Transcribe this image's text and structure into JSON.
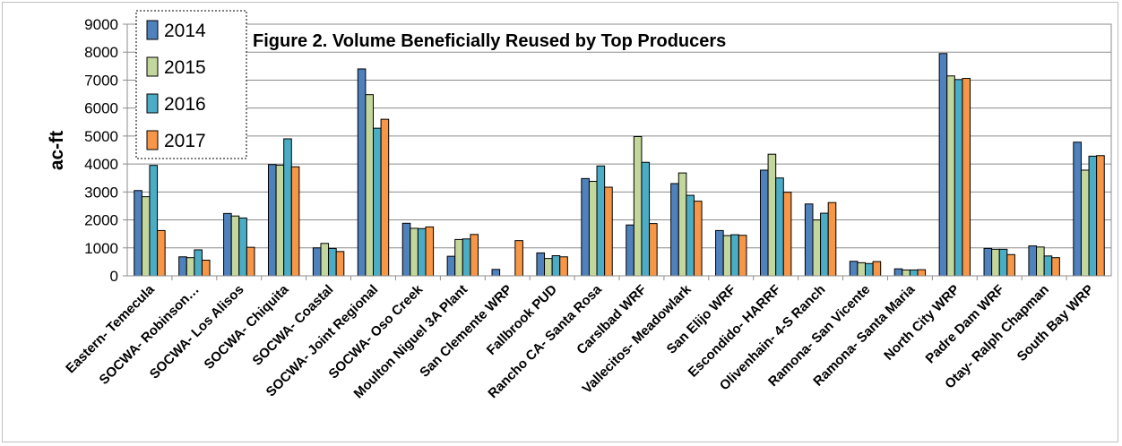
{
  "chart_data": {
    "type": "bar",
    "title": "Figure 2.  Volume Beneficially Reused by Top Producers",
    "xlabel": "",
    "ylabel": "ac-ft",
    "ylim": [
      0,
      9000
    ],
    "yticks": [
      "0",
      "1000",
      "2000",
      "3000",
      "4000",
      "5000",
      "6000",
      "7000",
      "8000",
      "9000"
    ],
    "grid": true,
    "legend": "top-left",
    "categories": [
      "Eastern- Temecula",
      "SOCWA- Robinson…",
      "SOCWA- Los Alisos",
      "SOCWA- Chiquita",
      "SOCWA- Coastal",
      "SOCWA- Joint Regional",
      "SOCWA- Oso Creek",
      "Moulton Niguel 3A Plant",
      "San Clemente WRP",
      "Fallbrook PUD",
      "Rancho CA- Santa Rosa",
      "Carslbad WRF",
      "Vallecitos- Meadowlark",
      "San Elijo WRF",
      "Escondido- HARRF",
      "Olivenhain- 4-S Ranch",
      "Ramona- San Vicente",
      "Ramona- Santa Maria",
      "North City WRP",
      "Padre Dam WRF",
      "Otay- Ralph Chapman",
      "South Bay WRP"
    ],
    "series": [
      {
        "name": "2014",
        "color": "#4F81BD",
        "values": [
          3050,
          680,
          2230,
          3980,
          1000,
          7400,
          1880,
          700,
          230,
          820,
          3480,
          1820,
          3300,
          1620,
          3780,
          2570,
          520,
          250,
          7950,
          980,
          1070,
          4780
        ]
      },
      {
        "name": "2015",
        "color": "#C3D69B",
        "values": [
          2830,
          650,
          2140,
          3960,
          1160,
          6480,
          1700,
          1300,
          0,
          620,
          3380,
          4980,
          3680,
          1440,
          4350,
          2000,
          470,
          210,
          7150,
          950,
          1030,
          3780
        ]
      },
      {
        "name": "2016",
        "color": "#4BACC6",
        "values": [
          3950,
          930,
          2070,
          4900,
          980,
          5280,
          1690,
          1320,
          0,
          720,
          3930,
          4060,
          2880,
          1470,
          3500,
          2240,
          440,
          210,
          7020,
          950,
          710,
          4280
        ]
      },
      {
        "name": "2017",
        "color": "#F79646",
        "values": [
          1620,
          560,
          1020,
          3900,
          870,
          5600,
          1750,
          1480,
          1260,
          680,
          3170,
          1870,
          2670,
          1450,
          2990,
          2620,
          510,
          220,
          7060,
          760,
          650,
          4300
        ]
      }
    ]
  }
}
